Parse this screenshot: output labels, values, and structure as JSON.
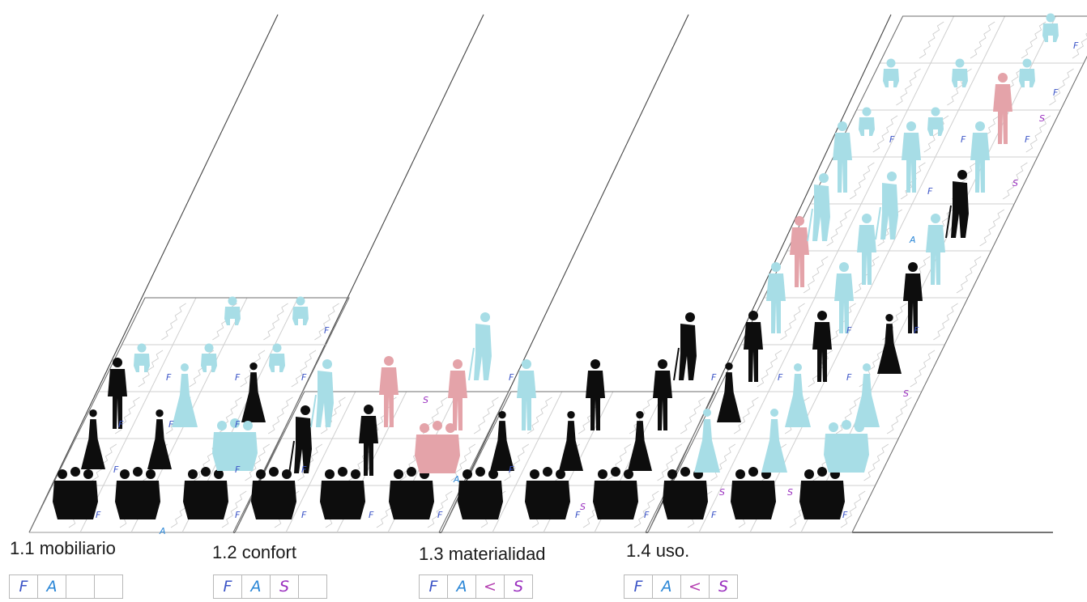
{
  "stages": [
    {
      "label": "1.1 mobiliario",
      "legend": [
        "F",
        "A",
        "",
        ""
      ]
    },
    {
      "label": "1.2 confort",
      "legend": [
        "F",
        "A",
        "S",
        ""
      ]
    },
    {
      "label": "1.3 materialidad",
      "legend": [
        "F",
        "A",
        "<",
        "S"
      ]
    },
    {
      "label": "1.4 uso.",
      "legend": [
        "F",
        "A",
        "<",
        "S"
      ]
    }
  ],
  "colors": {
    "black": "#0d0d0d",
    "cyan": "#a7dde6",
    "pink": "#e4a3a9",
    "F": "#3c55c7",
    "A": "#2a86d6",
    "S": "#9a2fbf",
    "<": "#b43fb0",
    "grid": "#cfcfcf",
    "outline": "#6e6e6e"
  }
}
